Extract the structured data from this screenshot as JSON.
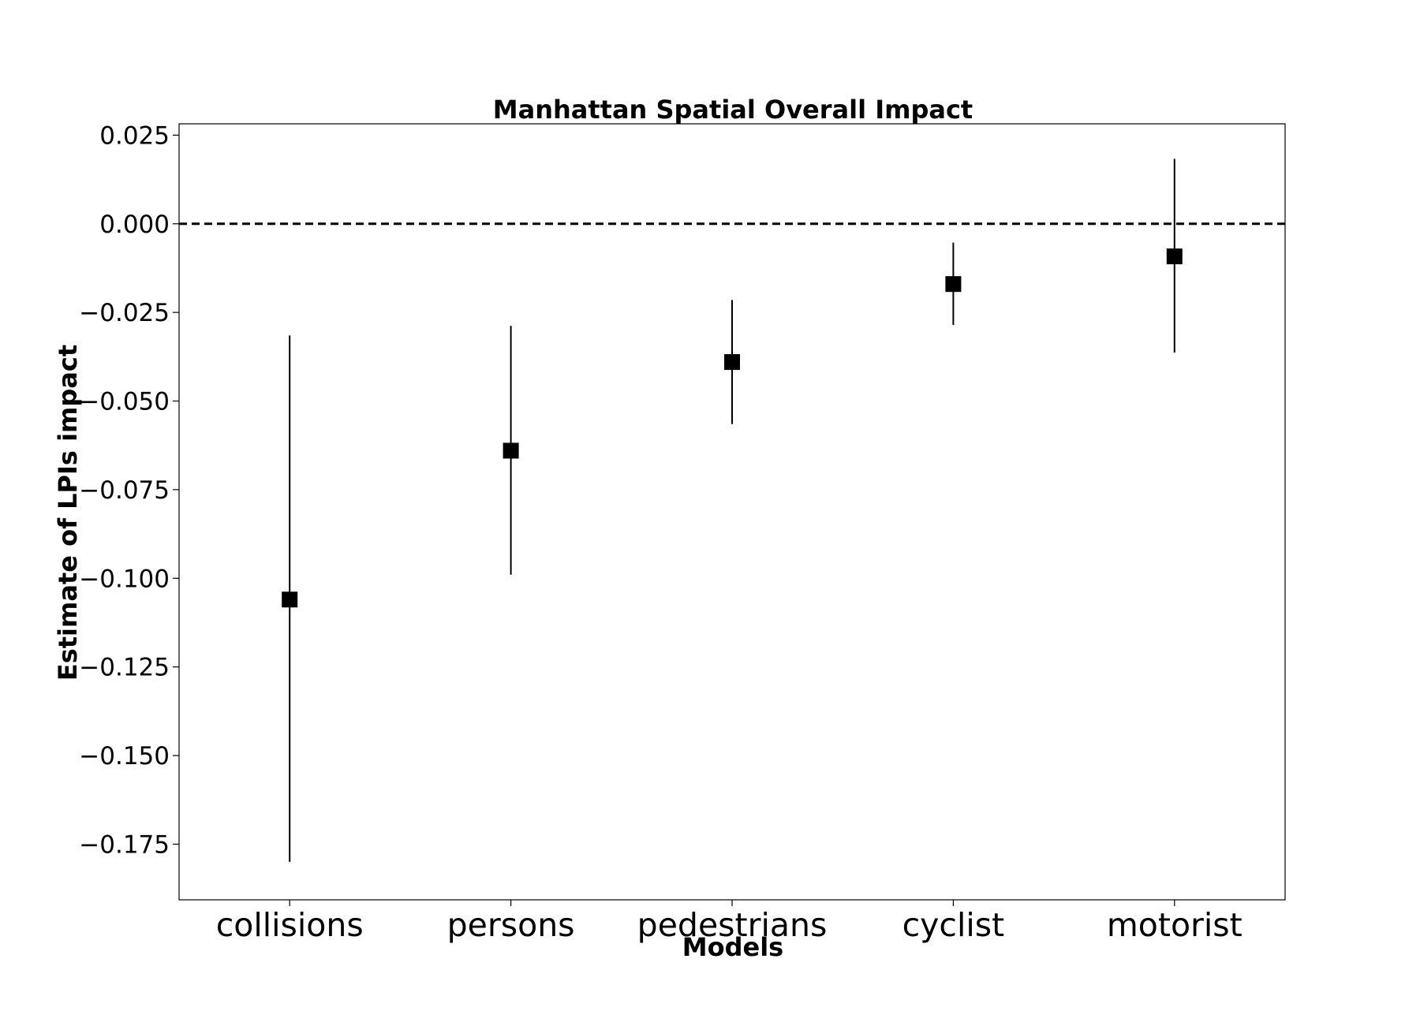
{
  "chart_data": {
    "type": "scatter",
    "title": "Manhattan Spatial Overall Impact",
    "xlabel": "Models",
    "ylabel": "Estimate of LPIs impact",
    "categories": [
      "collisions",
      "persons",
      "pedestrians",
      "cyclist",
      "motorist"
    ],
    "series": [
      {
        "values": [
          -0.106,
          -0.064,
          -0.039,
          -0.017,
          -0.0092
        ],
        "lower": [
          -0.18,
          -0.099,
          -0.0565,
          -0.0285,
          -0.0363
        ],
        "upper": [
          -0.0315,
          -0.0288,
          -0.0215,
          -0.0053,
          0.0183
        ],
        "marker": "square",
        "color": "#000000"
      }
    ],
    "reference_line": {
      "y": 0.0,
      "style": "dashed"
    },
    "ylim": [
      -0.1907,
      0.0282
    ],
    "yticks": [
      0.025,
      0.0,
      -0.025,
      -0.05,
      -0.075,
      -0.1,
      -0.125,
      -0.15,
      -0.175
    ],
    "ytick_labels": [
      "0.025",
      "0.000",
      "−0.025",
      "−0.050",
      "−0.075",
      "−0.100",
      "−0.125",
      "−0.150",
      "−0.175"
    ],
    "grid": false,
    "legend": "none"
  }
}
